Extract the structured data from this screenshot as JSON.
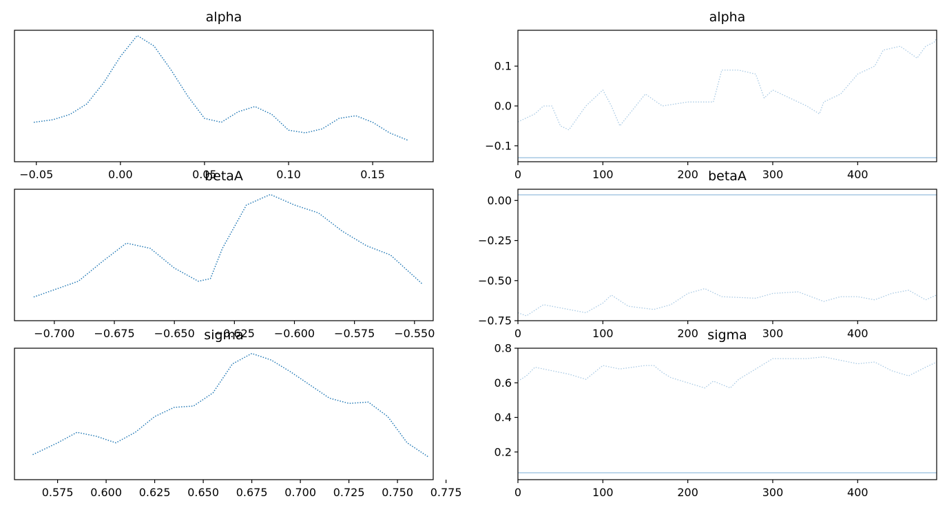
{
  "colors": {
    "kde": "#1f77b4",
    "trace": "#a6c8e3",
    "axes": "#000000",
    "background": "#ffffff"
  },
  "chart_data": [
    {
      "type": "line",
      "panel": "kde",
      "title": "alpha",
      "xlabel": "",
      "ylabel": "",
      "xlim": [
        -0.063,
        0.186
      ],
      "ylim": [
        0,
        1
      ],
      "show_yticks": false,
      "line_style": "dotted",
      "xticks": [
        -0.05,
        0.0,
        0.05,
        0.1,
        0.15
      ],
      "xtick_labels": [
        "−0.05",
        "0.00",
        "0.05",
        "0.10",
        "0.15"
      ],
      "x": [
        -0.0515,
        -0.04,
        -0.03,
        -0.02,
        -0.01,
        0.0,
        0.01,
        0.02,
        0.03,
        0.04,
        0.05,
        0.06,
        0.07,
        0.08,
        0.09,
        0.1,
        0.11,
        0.12,
        0.13,
        0.14,
        0.15,
        0.16,
        0.1715
      ],
      "y": [
        0.3,
        0.32,
        0.36,
        0.44,
        0.6,
        0.8,
        0.96,
        0.88,
        0.7,
        0.5,
        0.33,
        0.3,
        0.38,
        0.42,
        0.36,
        0.24,
        0.22,
        0.25,
        0.33,
        0.35,
        0.3,
        0.22,
        0.16
      ]
    },
    {
      "type": "line",
      "panel": "trace",
      "title": "alpha",
      "xlabel": "",
      "ylabel": "",
      "xlim": [
        0,
        493
      ],
      "ylim": [
        -0.14,
        0.19
      ],
      "xticks": [
        0,
        100,
        200,
        300,
        400
      ],
      "xtick_labels": [
        "0",
        "100",
        "200",
        "300",
        "400"
      ],
      "yticks": [
        -0.1,
        0.0,
        0.1
      ],
      "ytick_labels": [
        "−0.1",
        "0.0",
        "0.1"
      ],
      "x": [
        0,
        20,
        30,
        40,
        50,
        60,
        80,
        100,
        110,
        120,
        150,
        170,
        200,
        230,
        240,
        260,
        280,
        290,
        300,
        320,
        340,
        355,
        360,
        380,
        400,
        420,
        430,
        450,
        470,
        480,
        490,
        493
      ],
      "y": [
        -0.04,
        -0.02,
        0.0,
        0.0,
        -0.05,
        -0.06,
        0.0,
        0.04,
        0.0,
        -0.05,
        0.03,
        0.0,
        0.01,
        0.01,
        0.09,
        0.09,
        0.08,
        0.02,
        0.04,
        0.02,
        0.0,
        -0.02,
        0.01,
        0.03,
        0.08,
        0.1,
        0.14,
        0.15,
        0.12,
        0.15,
        0.16,
        0.17
      ],
      "reference_line": -0.13
    },
    {
      "type": "line",
      "panel": "kde",
      "title": "betaA",
      "xlabel": "",
      "ylabel": "",
      "xlim": [
        -0.7166,
        -0.5422
      ],
      "ylim": [
        0,
        1
      ],
      "show_yticks": false,
      "line_style": "dotted",
      "xticks": [
        -0.7,
        -0.675,
        -0.65,
        -0.625,
        -0.6,
        -0.575,
        -0.55
      ],
      "xtick_labels": [
        "−0.700",
        "−0.675",
        "−0.650",
        "−0.625",
        "−0.600",
        "−0.575",
        "−0.550"
      ],
      "x": [
        -0.7086,
        -0.69,
        -0.68,
        -0.67,
        -0.66,
        -0.65,
        -0.64,
        -0.635,
        -0.63,
        -0.62,
        -0.61,
        -0.6,
        -0.59,
        -0.58,
        -0.57,
        -0.56,
        -0.5468
      ],
      "y": [
        0.18,
        0.3,
        0.45,
        0.59,
        0.55,
        0.4,
        0.3,
        0.32,
        0.55,
        0.88,
        0.96,
        0.88,
        0.82,
        0.68,
        0.57,
        0.5,
        0.28
      ]
    },
    {
      "type": "line",
      "panel": "trace",
      "title": "betaA",
      "xlabel": "",
      "ylabel": "",
      "xlim": [
        0,
        493
      ],
      "ylim": [
        -0.75,
        0.07
      ],
      "xticks": [
        0,
        100,
        200,
        300,
        400
      ],
      "xtick_labels": [
        "0",
        "100",
        "200",
        "300",
        "400"
      ],
      "yticks": [
        -0.75,
        -0.5,
        -0.25,
        0.0
      ],
      "ytick_labels": [
        "−0.75",
        "−0.50",
        "−0.25",
        "0.00"
      ],
      "x": [
        0,
        10,
        30,
        50,
        80,
        100,
        110,
        130,
        160,
        180,
        200,
        220,
        240,
        280,
        300,
        330,
        360,
        380,
        400,
        420,
        440,
        460,
        480,
        493
      ],
      "y": [
        -0.7,
        -0.72,
        -0.65,
        -0.67,
        -0.7,
        -0.64,
        -0.59,
        -0.66,
        -0.68,
        -0.65,
        -0.58,
        -0.55,
        -0.6,
        -0.61,
        -0.58,
        -0.57,
        -0.63,
        -0.6,
        -0.6,
        -0.62,
        -0.58,
        -0.56,
        -0.62,
        -0.59
      ],
      "reference_line": 0.035
    },
    {
      "type": "line",
      "panel": "kde",
      "title": "sigma",
      "xlabel": "",
      "ylabel": "",
      "xlim": [
        0.5528,
        0.7684
      ],
      "ylim": [
        0,
        1
      ],
      "show_yticks": false,
      "line_style": "dotted",
      "xticks": [
        0.575,
        0.6,
        0.625,
        0.65,
        0.675,
        0.7,
        0.725,
        0.75,
        0.775
      ],
      "xtick_labels": [
        "0.575",
        "0.600",
        "0.625",
        "0.650",
        "0.675",
        "0.700",
        "0.725",
        "0.750",
        "0.775"
      ],
      "x": [
        0.5622,
        0.575,
        0.585,
        0.595,
        0.605,
        0.615,
        0.625,
        0.635,
        0.645,
        0.655,
        0.665,
        0.675,
        0.685,
        0.695,
        0.705,
        0.715,
        0.725,
        0.735,
        0.745,
        0.755,
        0.7662
      ],
      "y": [
        0.19,
        0.28,
        0.36,
        0.33,
        0.28,
        0.36,
        0.48,
        0.55,
        0.56,
        0.66,
        0.88,
        0.96,
        0.91,
        0.82,
        0.72,
        0.62,
        0.58,
        0.59,
        0.48,
        0.28,
        0.17
      ]
    },
    {
      "type": "line",
      "panel": "trace",
      "title": "sigma",
      "xlabel": "",
      "ylabel": "",
      "xlim": [
        0,
        493
      ],
      "ylim": [
        0.04,
        0.8
      ],
      "xticks": [
        0,
        100,
        200,
        300,
        400
      ],
      "xtick_labels": [
        "0",
        "100",
        "200",
        "300",
        "400"
      ],
      "yticks": [
        0.2,
        0.4,
        0.6,
        0.8
      ],
      "ytick_labels": [
        "0.2",
        "0.4",
        "0.6",
        "0.8"
      ],
      "x": [
        0,
        10,
        20,
        40,
        60,
        80,
        100,
        120,
        150,
        160,
        170,
        180,
        200,
        220,
        230,
        250,
        260,
        280,
        300,
        320,
        340,
        360,
        380,
        400,
        420,
        440,
        460,
        480,
        493
      ],
      "y": [
        0.61,
        0.64,
        0.69,
        0.67,
        0.65,
        0.62,
        0.7,
        0.68,
        0.7,
        0.7,
        0.66,
        0.63,
        0.6,
        0.57,
        0.61,
        0.57,
        0.62,
        0.68,
        0.74,
        0.74,
        0.74,
        0.75,
        0.73,
        0.71,
        0.72,
        0.67,
        0.64,
        0.69,
        0.72
      ],
      "reference_line": 0.08
    }
  ]
}
